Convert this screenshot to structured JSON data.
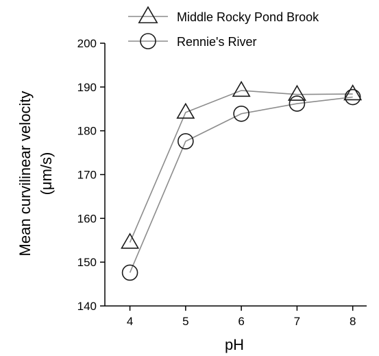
{
  "chart_data": {
    "type": "line",
    "xlabel": "pH",
    "ylabel_line1": "Mean curvilinear velocity",
    "ylabel_line2": "(μm/s)",
    "x": [
      4,
      5,
      6,
      7,
      8
    ],
    "xticks": [
      "4",
      "5",
      "6",
      "7",
      "8"
    ],
    "xlim": [
      3.55,
      8.25
    ],
    "ylim": [
      140,
      200
    ],
    "yticks": [
      "140",
      "150",
      "160",
      "170",
      "180",
      "190",
      "200"
    ],
    "grid": false,
    "legend_position": "top",
    "series": [
      {
        "name": "Middle Rocky Pond Brook",
        "marker": "triangle",
        "values": [
          154.5,
          184.2,
          189.2,
          188.3,
          188.4
        ]
      },
      {
        "name": "Rennie's River",
        "marker": "circle",
        "values": [
          147.6,
          177.6,
          183.9,
          186.2,
          187.7
        ]
      }
    ],
    "colors": {
      "line": "#8c8c8c",
      "marker": "#1a1a1a",
      "axis": "#000000"
    }
  }
}
